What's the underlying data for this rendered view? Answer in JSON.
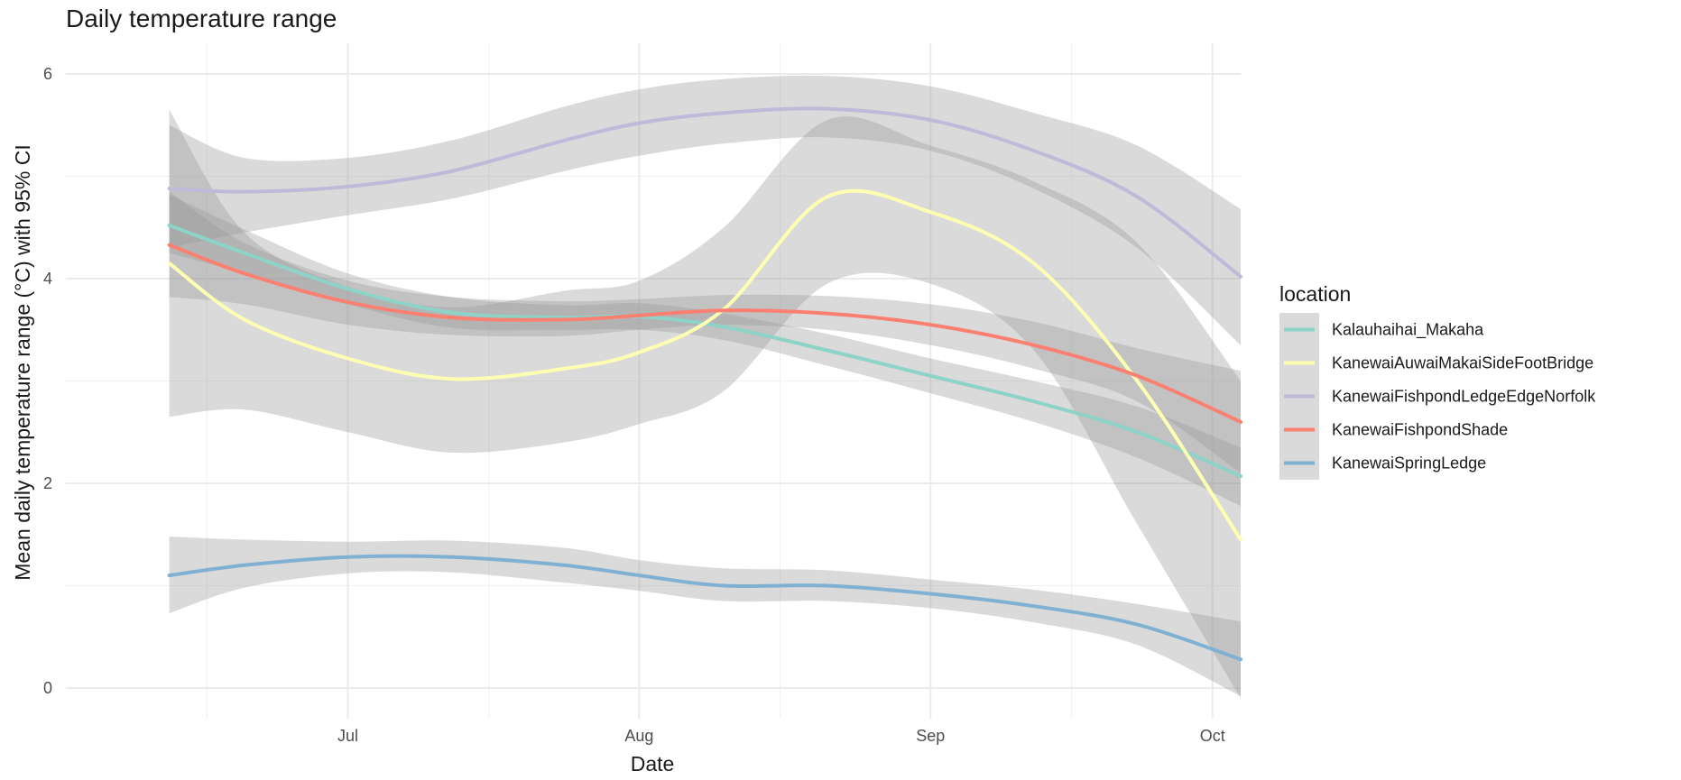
{
  "chart_data": {
    "type": "line",
    "title": "Daily temperature range",
    "xlabel": "Date",
    "ylabel": "Mean daily temperature range (°C) with 95% CI",
    "x_axis": {
      "type": "date",
      "range": [
        "2023-06-01",
        "2023-10-04"
      ],
      "major_ticks": [
        {
          "date": "2023-07-01",
          "label": "Jul"
        },
        {
          "date": "2023-08-01",
          "label": "Aug"
        },
        {
          "date": "2023-09-01",
          "label": "Sep"
        },
        {
          "date": "2023-10-01",
          "label": "Oct"
        }
      ],
      "minor_gridlines": [
        "2023-06-16",
        "2023-07-16",
        "2023-08-16",
        "2023-09-16"
      ]
    },
    "y_axis": {
      "range": [
        -0.3,
        6.3
      ],
      "ticks": [
        0,
        2,
        4,
        6
      ],
      "minor_gridlines": [
        1,
        3,
        5
      ]
    },
    "grid": true,
    "band": "95% CI (grey ribbon)",
    "legend": {
      "title": "location",
      "position": "right"
    },
    "x": [
      "2023-06-12",
      "2023-06-20",
      "2023-07-01",
      "2023-07-12",
      "2023-07-24",
      "2023-08-01",
      "2023-08-10",
      "2023-08-21",
      "2023-09-01",
      "2023-09-12",
      "2023-09-23",
      "2023-10-04"
    ],
    "series": [
      {
        "name": "Kalauhaihai_Makaha",
        "color": "#8dd3c7",
        "values": [
          4.52,
          4.25,
          3.9,
          3.67,
          3.62,
          3.63,
          3.53,
          3.3,
          3.05,
          2.8,
          2.5,
          2.07
        ],
        "ci_lower": [
          4.25,
          4.05,
          3.75,
          3.52,
          3.5,
          3.5,
          3.4,
          3.15,
          2.88,
          2.6,
          2.25,
          1.78
        ],
        "ci_upper": [
          4.82,
          4.48,
          4.05,
          3.82,
          3.74,
          3.76,
          3.66,
          3.46,
          3.22,
          3.0,
          2.75,
          2.35
        ]
      },
      {
        "name": "KanewaiAuwaiMakaiSideFootBridge",
        "color": "#ffffb3",
        "values": [
          4.15,
          3.6,
          3.22,
          3.02,
          3.12,
          3.28,
          3.7,
          4.8,
          4.65,
          4.15,
          3.0,
          1.45
        ],
        "ci_lower": [
          2.65,
          2.72,
          2.5,
          2.3,
          2.4,
          2.58,
          2.9,
          3.95,
          3.95,
          3.3,
          1.6,
          -0.1
        ],
        "ci_upper": [
          5.65,
          4.45,
          3.92,
          3.72,
          3.88,
          3.98,
          4.5,
          5.55,
          5.3,
          4.95,
          4.35,
          3.0
        ]
      },
      {
        "name": "KanewaiFishpondLedgeEdgeNorfolk",
        "color": "#bebada",
        "values": [
          4.88,
          4.85,
          4.9,
          5.05,
          5.35,
          5.52,
          5.62,
          5.66,
          5.55,
          5.25,
          4.8,
          4.02
        ],
        "ci_lower": [
          4.3,
          4.45,
          4.62,
          4.78,
          5.05,
          5.2,
          5.32,
          5.38,
          5.25,
          4.88,
          4.3,
          3.35
        ],
        "ci_upper": [
          5.5,
          5.18,
          5.18,
          5.35,
          5.68,
          5.85,
          5.95,
          5.98,
          5.88,
          5.62,
          5.3,
          4.68
        ]
      },
      {
        "name": "KanewaiFishpondShade",
        "color": "#fb8072",
        "values": [
          4.33,
          4.05,
          3.77,
          3.62,
          3.6,
          3.64,
          3.69,
          3.66,
          3.55,
          3.35,
          3.05,
          2.6
        ],
        "ci_lower": [
          3.82,
          3.75,
          3.55,
          3.45,
          3.44,
          3.5,
          3.55,
          3.5,
          3.35,
          3.12,
          2.8,
          2.1
        ],
        "ci_upper": [
          4.85,
          4.35,
          3.98,
          3.82,
          3.78,
          3.8,
          3.84,
          3.83,
          3.75,
          3.58,
          3.32,
          3.1
        ]
      },
      {
        "name": "KanewaiSpringLedge",
        "color": "#80b1d3",
        "values": [
          1.1,
          1.2,
          1.28,
          1.28,
          1.2,
          1.1,
          1.0,
          1.0,
          0.92,
          0.8,
          0.62,
          0.28
        ],
        "ci_lower": [
          0.73,
          0.98,
          1.12,
          1.13,
          1.03,
          0.95,
          0.85,
          0.85,
          0.78,
          0.64,
          0.42,
          -0.08
        ],
        "ci_upper": [
          1.48,
          1.45,
          1.43,
          1.44,
          1.37,
          1.25,
          1.17,
          1.15,
          1.06,
          0.96,
          0.82,
          0.65
        ]
      }
    ]
  }
}
